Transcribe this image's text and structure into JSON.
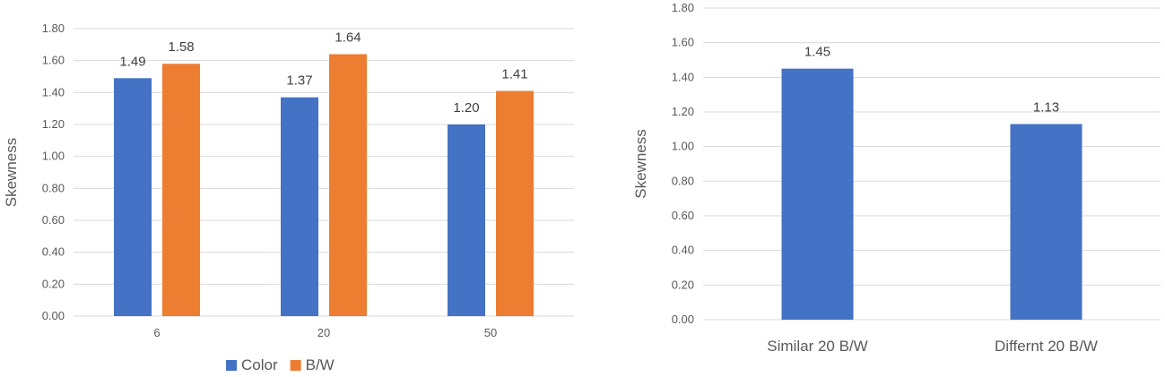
{
  "chart_data": [
    {
      "type": "bar",
      "title": "",
      "xlabel": "",
      "ylabel": "Skewness",
      "ylim": [
        0,
        1.8
      ],
      "ytick_step": 0.2,
      "grid": true,
      "legend_position": "bottom",
      "categories": [
        "6",
        "20",
        "50"
      ],
      "series": [
        {
          "name": "Color",
          "color": "#4472C4",
          "values": [
            1.49,
            1.37,
            1.2
          ]
        },
        {
          "name": "B/W",
          "color": "#ED7D31",
          "values": [
            1.58,
            1.64,
            1.41
          ]
        }
      ]
    },
    {
      "type": "bar",
      "title": "",
      "xlabel": "",
      "ylabel": "Skewness",
      "ylim": [
        0,
        1.8
      ],
      "ytick_step": 0.2,
      "grid": true,
      "legend_position": "none",
      "categories": [
        "Similar 20 B/W",
        "Differnt 20 B/W"
      ],
      "series": [
        {
          "color": "#4472C4",
          "values": [
            1.45,
            1.13
          ]
        }
      ]
    }
  ]
}
